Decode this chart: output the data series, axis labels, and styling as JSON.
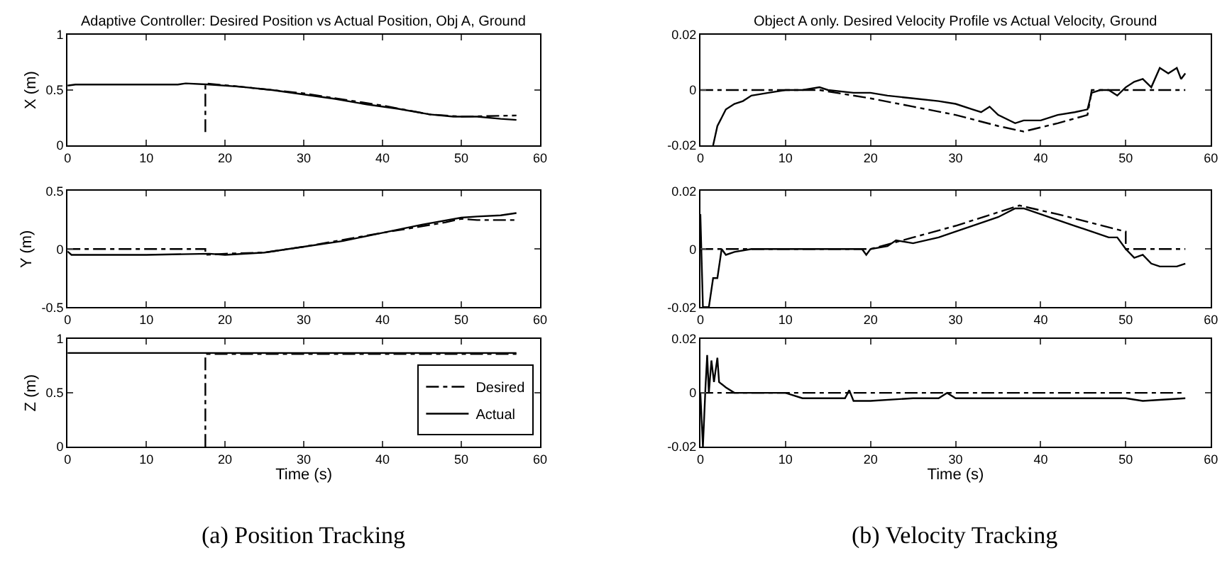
{
  "chart_data": [
    {
      "type": "line",
      "title": "Adaptive Controller: Desired Position vs Actual Position, Obj A, Ground",
      "ylabel": "X (m)",
      "xlim": [
        0,
        60
      ],
      "xticks": [
        0,
        10,
        20,
        30,
        40,
        50,
        60
      ],
      "ylim": [
        0,
        1
      ],
      "yticks": [
        0,
        0.5,
        1
      ],
      "series": [
        {
          "color": "#000000",
          "line_style": "dashdot",
          "x": [
            17.5,
            17.5,
            22,
            30,
            40,
            46,
            50,
            57
          ],
          "values": [
            0.12,
            0.56,
            0.53,
            0.47,
            0.36,
            0.28,
            0.26,
            0.27
          ]
        },
        {
          "color": "#000000",
          "line_style": "solid",
          "x": [
            0,
            1,
            14,
            15,
            18,
            22,
            26,
            30,
            34,
            38,
            42,
            46,
            49,
            52,
            55,
            57
          ],
          "values": [
            0.54,
            0.55,
            0.55,
            0.56,
            0.55,
            0.53,
            0.5,
            0.46,
            0.42,
            0.37,
            0.33,
            0.28,
            0.26,
            0.26,
            0.24,
            0.23
          ]
        }
      ]
    },
    {
      "type": "line",
      "title": "Object A only. Desired Velocity Profile vs Actual Velocity, Ground",
      "xlim": [
        0,
        60
      ],
      "xticks": [
        0,
        10,
        20,
        30,
        40,
        50,
        60
      ],
      "ylim": [
        -0.02,
        0.02
      ],
      "yticks": [
        -0.02,
        0,
        0.02
      ],
      "series": [
        {
          "color": "#000000",
          "line_style": "dashdot",
          "x": [
            0,
            10,
            14,
            20,
            25,
            30,
            35,
            38,
            42,
            45.5,
            46,
            57
          ],
          "values": [
            0,
            0,
            0,
            -0.003,
            -0.006,
            -0.009,
            -0.013,
            -0.015,
            -0.012,
            -0.009,
            0,
            0
          ]
        },
        {
          "color": "#000000",
          "line_style": "solid",
          "x": [
            1.5,
            2,
            3,
            4,
            5,
            6,
            8,
            10,
            12,
            14,
            15,
            18,
            20,
            22,
            25,
            28,
            30,
            32,
            33,
            34,
            35,
            37,
            38,
            40,
            42,
            44,
            45.5,
            46,
            47,
            48,
            49,
            50,
            51,
            52,
            53,
            54,
            55,
            56,
            56.5,
            57
          ],
          "values": [
            -0.02,
            -0.013,
            -0.007,
            -0.005,
            -0.004,
            -0.002,
            -0.001,
            0,
            0,
            0.001,
            0,
            -0.001,
            -0.001,
            -0.002,
            -0.003,
            -0.004,
            -0.005,
            -0.007,
            -0.008,
            -0.006,
            -0.009,
            -0.012,
            -0.011,
            -0.011,
            -0.009,
            -0.008,
            -0.007,
            -0.001,
            0,
            0,
            -0.002,
            0.001,
            0.003,
            0.004,
            0.001,
            0.008,
            0.006,
            0.008,
            0.004,
            0.006
          ]
        }
      ]
    },
    {
      "type": "line",
      "ylabel": "Y (m)",
      "xlim": [
        0,
        60
      ],
      "xticks": [
        0,
        10,
        20,
        30,
        40,
        50,
        60
      ],
      "ylim": [
        -0.5,
        0.5
      ],
      "yticks": [
        -0.5,
        0,
        0.5
      ],
      "series": [
        {
          "color": "#000000",
          "line_style": "dashdot",
          "x": [
            0,
            17.5,
            17.5,
            20,
            25,
            30,
            40,
            48,
            50,
            52,
            57
          ],
          "values": [
            0,
            0,
            -0.05,
            -0.04,
            -0.03,
            0.02,
            0.14,
            0.23,
            0.26,
            0.25,
            0.25
          ]
        },
        {
          "color": "#000000",
          "line_style": "solid",
          "x": [
            0,
            0.5,
            10,
            18,
            20,
            25,
            30,
            35,
            40,
            45,
            50,
            52,
            55,
            57
          ],
          "values": [
            -0.02,
            -0.05,
            -0.05,
            -0.04,
            -0.05,
            -0.03,
            0.02,
            0.07,
            0.14,
            0.21,
            0.27,
            0.28,
            0.29,
            0.31
          ]
        }
      ]
    },
    {
      "type": "line",
      "xlim": [
        0,
        60
      ],
      "xticks": [
        0,
        10,
        20,
        30,
        40,
        50,
        60
      ],
      "ylim": [
        -0.02,
        0.02
      ],
      "yticks": [
        -0.02,
        0,
        0.02
      ],
      "series": [
        {
          "color": "#000000",
          "line_style": "dashdot",
          "x": [
            0,
            20,
            25,
            30,
            37.5,
            42,
            50,
            50,
            57
          ],
          "values": [
            0,
            0,
            0.004,
            0.008,
            0.015,
            0.012,
            0.006,
            0,
            0
          ]
        },
        {
          "color": "#000000",
          "line_style": "solid",
          "x": [
            0,
            0.3,
            1,
            1.5,
            2,
            2.5,
            3,
            4,
            6,
            10,
            15,
            19,
            19.5,
            20,
            22,
            23,
            25,
            28,
            30,
            33,
            35,
            37,
            38,
            40,
            42,
            44,
            46,
            48,
            49,
            50,
            51,
            52,
            53,
            54,
            56,
            57
          ],
          "values": [
            0.012,
            -0.02,
            -0.02,
            -0.01,
            -0.01,
            0,
            -0.002,
            -0.001,
            0,
            0,
            0,
            0,
            -0.002,
            0,
            0.001,
            0.003,
            0.002,
            0.004,
            0.006,
            0.009,
            0.011,
            0.014,
            0.014,
            0.012,
            0.01,
            0.008,
            0.006,
            0.004,
            0.004,
            0,
            -0.003,
            -0.002,
            -0.005,
            -0.006,
            -0.006,
            -0.005
          ]
        }
      ]
    },
    {
      "type": "line",
      "ylabel": "Z (m)",
      "xlabel": "Time (s)",
      "annotations": [
        "(a) Position Tracking"
      ],
      "xlim": [
        0,
        60
      ],
      "xticks": [
        0,
        10,
        20,
        30,
        40,
        50,
        60
      ],
      "ylim": [
        0,
        1
      ],
      "yticks": [
        0,
        0.5,
        1
      ],
      "legend": "bottom right",
      "series": [
        {
          "name": "Desired",
          "color": "#000000",
          "line_style": "dashdot",
          "x": [
            17.5,
            17.5,
            57
          ],
          "values": [
            0,
            0.86,
            0.86
          ]
        },
        {
          "name": "Actual",
          "color": "#000000",
          "line_style": "solid",
          "x": [
            0,
            57
          ],
          "values": [
            0.87,
            0.87
          ]
        }
      ]
    },
    {
      "type": "line",
      "xlabel": "Time (s)",
      "annotations": [
        "(b) Velocity Tracking"
      ],
      "xlim": [
        0,
        60
      ],
      "xticks": [
        0,
        10,
        20,
        30,
        40,
        50,
        60
      ],
      "ylim": [
        -0.02,
        0.02
      ],
      "yticks": [
        -0.02,
        0,
        0.02
      ],
      "series": [
        {
          "color": "#000000",
          "line_style": "dashdot",
          "x": [
            0,
            57
          ],
          "values": [
            0,
            0
          ]
        },
        {
          "color": "#000000",
          "line_style": "solid",
          "x": [
            0,
            0.3,
            0.6,
            0.8,
            1,
            1.3,
            1.6,
            2,
            2.2,
            3,
            4,
            10,
            12,
            17,
            17.5,
            18,
            20,
            25,
            28,
            29,
            30,
            40,
            50,
            52,
            57
          ],
          "values": [
            0,
            -0.02,
            0.002,
            0.014,
            0,
            0.012,
            0.004,
            0.013,
            0.004,
            0.002,
            0,
            0,
            -0.002,
            -0.002,
            0.001,
            -0.003,
            -0.003,
            -0.002,
            -0.002,
            0,
            -0.002,
            -0.002,
            -0.002,
            -0.003,
            -0.002
          ]
        }
      ]
    }
  ]
}
